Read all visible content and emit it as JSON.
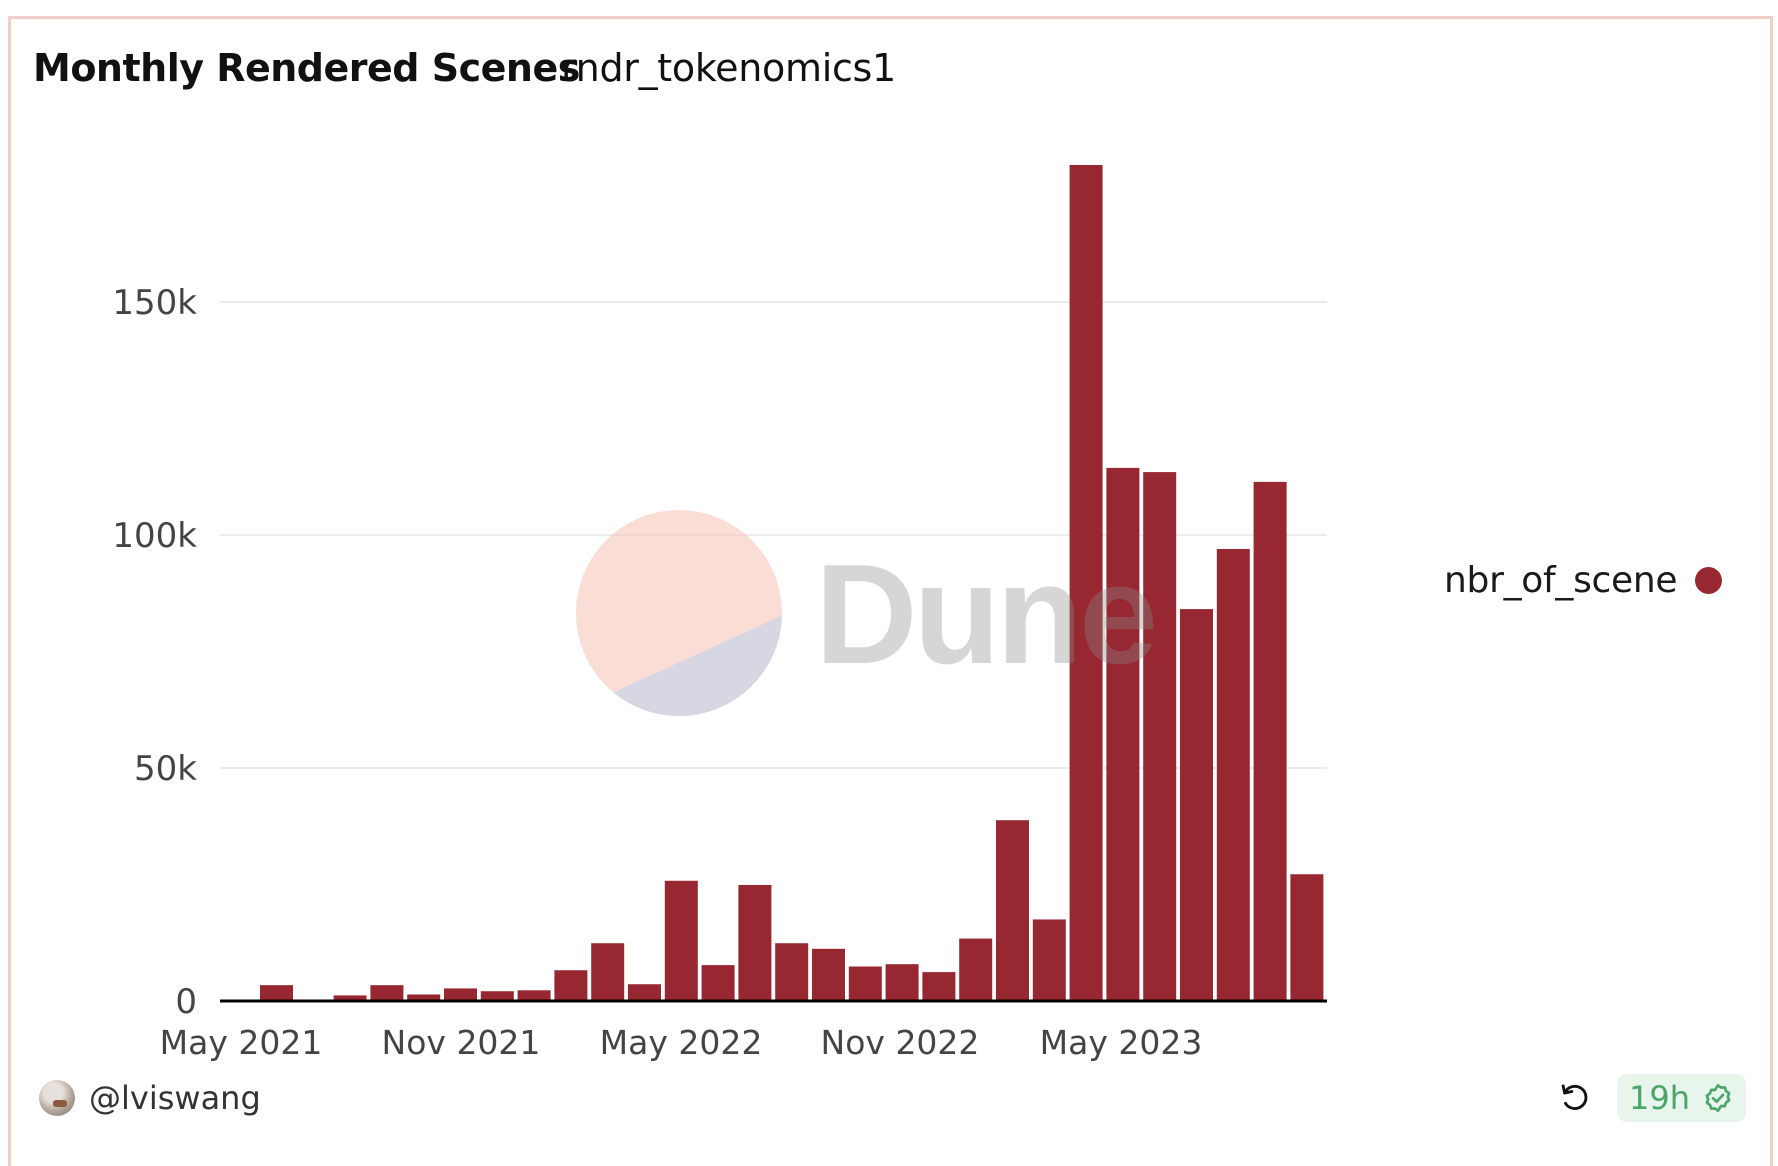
{
  "card": {
    "title": "Monthly Rendered Scenes",
    "subtitle": "rndr_tokenomics1"
  },
  "legend": {
    "label": "nbr_of_scene",
    "color": "#972832"
  },
  "watermark": {
    "text": "Dune"
  },
  "footer": {
    "username": "@lviswang",
    "freshness": "19h",
    "refresh_icon": "refresh-icon",
    "status_icon": "verified-check-icon"
  },
  "colors": {
    "bar": "#972832",
    "badge_bg": "#e7f5ec",
    "badge_text": "#4aa56a",
    "border": "#efcfc8",
    "gridline": "#ececec"
  },
  "chart_data": {
    "type": "bar",
    "title": "Monthly Rendered Scenes",
    "subtitle": "rndr_tokenomics1",
    "xlabel": "",
    "ylabel": "",
    "ylim": [
      0,
      180000
    ],
    "yticks": [
      0,
      50000,
      100000,
      150000
    ],
    "ytick_labels": [
      "0",
      "50k",
      "100k",
      "150k"
    ],
    "xtick_labels": [
      "May 2021",
      "Nov 2021",
      "May 2022",
      "Nov 2022",
      "May 2023"
    ],
    "grid": true,
    "legend_position": "right",
    "series": [
      {
        "name": "nbr_of_scene",
        "color": "#972832",
        "categories": [
          "Jun 2021",
          "Jul 2021",
          "Aug 2021",
          "Sep 2021",
          "Oct 2021",
          "Nov 2021",
          "Dec 2021",
          "Jan 2022",
          "Feb 2022",
          "Mar 2022",
          "Apr 2022",
          "May 2022",
          "Jun 2022",
          "Jul 2022",
          "Aug 2022",
          "Sep 2022",
          "Oct 2022",
          "Nov 2022",
          "Dec 2022",
          "Jan 2023",
          "Feb 2023",
          "Mar 2023",
          "Apr 2023",
          "May 2023",
          "Jun 2023",
          "Jul 2023",
          "Aug 2023",
          "Sep 2023",
          "Oct 2023"
        ],
        "values": [
          3400,
          300,
          1200,
          3400,
          1400,
          2700,
          2100,
          2300,
          6600,
          12400,
          3600,
          25800,
          7700,
          24900,
          12400,
          11200,
          7400,
          7900,
          6200,
          13400,
          38800,
          17500,
          179400,
          114400,
          113500,
          84100,
          97000,
          111400,
          27200
        ]
      }
    ]
  }
}
